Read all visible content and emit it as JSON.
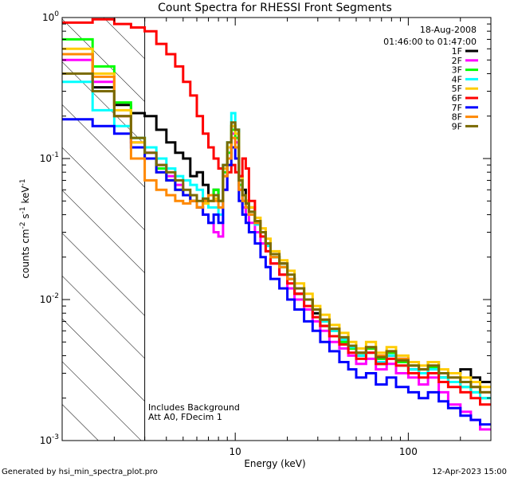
{
  "chart_data": {
    "type": "line",
    "title": "Count Spectra for RHESSI Front Segments",
    "xlabel": "Energy (keV)",
    "ylabel": "counts cm",
    "ylabel_sup1": "-2",
    "ylabel_mid": " s",
    "ylabel_sup2": "-1",
    "ylabel_end": " keV",
    "ylabel_sup3": "-1",
    "xscale": "log",
    "yscale": "log",
    "xlim": [
      1.0,
      300.0
    ],
    "ylim": [
      0.001,
      1.0
    ],
    "x_ticks": [
      {
        "value": 10,
        "label": "10"
      },
      {
        "value": 100,
        "label": "100"
      }
    ],
    "y_ticks": [
      {
        "value": 1.0,
        "base": "10",
        "exp": "0"
      },
      {
        "value": 0.1,
        "base": "10",
        "exp": "-1"
      },
      {
        "value": 0.01,
        "base": "10",
        "exp": "-2"
      },
      {
        "value": 0.001,
        "base": "10",
        "exp": "-3"
      }
    ],
    "shaded_region": {
      "x": [
        1.0,
        3.0
      ],
      "pattern": "diagonal-hatch"
    },
    "vertical_line_at": 3.0,
    "legend_position": "top-right",
    "date_line": "18-Aug-2008",
    "time_line": "01:46:00 to 01:47:00",
    "notes": [
      "Includes Background",
      "Att A0, FDecim 1"
    ],
    "footer_left": "Generated by hsi_min_spectra_plot.pro",
    "footer_right": "12-Apr-2023 15:00",
    "energy_edges": [
      1.0,
      1.5,
      2.0,
      2.5,
      3.0,
      3.5,
      4.0,
      4.5,
      5.0,
      5.5,
      6.0,
      6.5,
      7.0,
      7.5,
      8.0,
      8.5,
      9.0,
      9.5,
      10.0,
      10.5,
      11.0,
      11.5,
      12.0,
      13.0,
      14.0,
      15.0,
      16.0,
      18.0,
      20.0,
      22.0,
      25.0,
      28.0,
      31.0,
      35.0,
      40.0,
      45.0,
      50.0,
      57.0,
      65.0,
      75.0,
      85.0,
      100.0,
      115.0,
      130.0,
      150.0,
      170.0,
      200.0,
      230.0,
      260.0,
      300.0
    ],
    "series": [
      {
        "name": "1F",
        "color": "#000000",
        "values": [
          0.55,
          0.32,
          0.24,
          0.21,
          0.2,
          0.16,
          0.13,
          0.11,
          0.1,
          0.075,
          0.08,
          0.065,
          0.055,
          0.06,
          0.05,
          0.09,
          0.12,
          0.17,
          0.16,
          0.075,
          0.06,
          0.05,
          0.045,
          0.035,
          0.03,
          0.025,
          0.02,
          0.018,
          0.014,
          0.011,
          0.01,
          0.008,
          0.0065,
          0.0055,
          0.005,
          0.0045,
          0.004,
          0.0045,
          0.0035,
          0.004,
          0.0038,
          0.0032,
          0.003,
          0.0036,
          0.0028,
          0.003,
          0.0032,
          0.0028,
          0.0026
        ]
      },
      {
        "name": "2F",
        "color": "#ff00ff",
        "values": [
          0.5,
          0.35,
          0.2,
          0.13,
          0.11,
          0.09,
          0.075,
          0.065,
          0.055,
          0.05,
          0.045,
          0.04,
          0.035,
          0.03,
          0.028,
          0.06,
          0.1,
          0.15,
          0.13,
          0.06,
          0.045,
          0.04,
          0.035,
          0.03,
          0.025,
          0.022,
          0.018,
          0.015,
          0.012,
          0.01,
          0.0085,
          0.007,
          0.006,
          0.005,
          0.0045,
          0.004,
          0.0035,
          0.0038,
          0.0032,
          0.0035,
          0.003,
          0.0028,
          0.0025,
          0.0028,
          0.0022,
          0.0018,
          0.0016,
          0.0014,
          0.0012
        ]
      },
      {
        "name": "3F",
        "color": "#00ff00",
        "values": [
          0.7,
          0.45,
          0.25,
          0.14,
          0.1,
          0.085,
          0.07,
          0.06,
          0.055,
          0.05,
          0.045,
          0.05,
          0.055,
          0.06,
          0.05,
          0.08,
          0.11,
          0.16,
          0.14,
          0.065,
          0.05,
          0.045,
          0.04,
          0.035,
          0.03,
          0.025,
          0.02,
          0.017,
          0.014,
          0.012,
          0.01,
          0.0085,
          0.007,
          0.006,
          0.005,
          0.0045,
          0.004,
          0.0045,
          0.0038,
          0.0042,
          0.0036,
          0.0034,
          0.003,
          0.0033,
          0.0028,
          0.0026,
          0.0024,
          0.0022,
          0.002
        ]
      },
      {
        "name": "4F",
        "color": "#00ffff",
        "values": [
          0.35,
          0.22,
          0.17,
          0.14,
          0.12,
          0.1,
          0.085,
          0.075,
          0.07,
          0.065,
          0.06,
          0.05,
          0.045,
          0.045,
          0.04,
          0.09,
          0.13,
          0.21,
          0.16,
          0.07,
          0.055,
          0.048,
          0.04,
          0.034,
          0.028,
          0.024,
          0.02,
          0.017,
          0.014,
          0.012,
          0.01,
          0.0085,
          0.007,
          0.006,
          0.0052,
          0.0046,
          0.004,
          0.0042,
          0.0036,
          0.004,
          0.0034,
          0.0032,
          0.003,
          0.0032,
          0.0028,
          0.0026,
          0.0024,
          0.0022,
          0.002
        ]
      },
      {
        "name": "5F",
        "color": "#ffcc00",
        "values": [
          0.6,
          0.4,
          0.22,
          0.13,
          0.1,
          0.08,
          0.07,
          0.06,
          0.055,
          0.05,
          0.045,
          0.048,
          0.05,
          0.052,
          0.05,
          0.085,
          0.12,
          0.17,
          0.15,
          0.075,
          0.055,
          0.05,
          0.045,
          0.038,
          0.032,
          0.027,
          0.022,
          0.019,
          0.016,
          0.013,
          0.011,
          0.009,
          0.0078,
          0.0066,
          0.0058,
          0.005,
          0.0045,
          0.005,
          0.0042,
          0.0046,
          0.004,
          0.0036,
          0.0034,
          0.0036,
          0.0032,
          0.003,
          0.0028,
          0.0026,
          0.0024
        ]
      },
      {
        "name": "6F",
        "color": "#ff0000",
        "values": [
          0.92,
          0.97,
          0.9,
          0.85,
          0.8,
          0.65,
          0.55,
          0.45,
          0.35,
          0.28,
          0.2,
          0.15,
          0.12,
          0.1,
          0.085,
          0.075,
          0.08,
          0.09,
          0.08,
          0.075,
          0.1,
          0.085,
          0.05,
          0.035,
          0.028,
          0.022,
          0.018,
          0.015,
          0.013,
          0.011,
          0.009,
          0.0075,
          0.0065,
          0.0055,
          0.0048,
          0.0042,
          0.0038,
          0.0042,
          0.0035,
          0.0038,
          0.0034,
          0.003,
          0.0028,
          0.003,
          0.0026,
          0.0024,
          0.0022,
          0.002,
          0.0018
        ]
      },
      {
        "name": "7F",
        "color": "#0000ff",
        "values": [
          0.19,
          0.17,
          0.15,
          0.12,
          0.1,
          0.08,
          0.07,
          0.06,
          0.055,
          0.05,
          0.045,
          0.04,
          0.035,
          0.04,
          0.035,
          0.06,
          0.09,
          0.12,
          0.1,
          0.05,
          0.04,
          0.035,
          0.03,
          0.025,
          0.02,
          0.017,
          0.014,
          0.012,
          0.01,
          0.0085,
          0.007,
          0.006,
          0.005,
          0.0043,
          0.0036,
          0.0032,
          0.0028,
          0.003,
          0.0025,
          0.0028,
          0.0024,
          0.0022,
          0.002,
          0.0022,
          0.0019,
          0.0017,
          0.0015,
          0.0014,
          0.0013
        ]
      },
      {
        "name": "8F",
        "color": "#ff8800",
        "values": [
          0.55,
          0.38,
          0.2,
          0.1,
          0.07,
          0.06,
          0.055,
          0.05,
          0.048,
          0.05,
          0.045,
          0.05,
          0.055,
          0.05,
          0.045,
          0.075,
          0.1,
          0.14,
          0.12,
          0.06,
          0.05,
          0.045,
          0.04,
          0.035,
          0.03,
          0.025,
          0.02,
          0.017,
          0.014,
          0.012,
          0.01,
          0.0085,
          0.0072,
          0.0062,
          0.0054,
          0.0047,
          0.0042,
          0.0046,
          0.004,
          0.0043,
          0.0038,
          0.0034,
          0.0032,
          0.0034,
          0.003,
          0.0028,
          0.0026,
          0.0024,
          0.0022
        ]
      },
      {
        "name": "9F",
        "color": "#7a6a00",
        "values": [
          0.4,
          0.3,
          0.2,
          0.14,
          0.11,
          0.09,
          0.08,
          0.07,
          0.06,
          0.055,
          0.05,
          0.052,
          0.05,
          0.055,
          0.05,
          0.09,
          0.13,
          0.18,
          0.16,
          0.07,
          0.055,
          0.048,
          0.042,
          0.036,
          0.03,
          0.025,
          0.021,
          0.018,
          0.015,
          0.012,
          0.01,
          0.0085,
          0.0072,
          0.0062,
          0.0054,
          0.0047,
          0.0042,
          0.0046,
          0.0039,
          0.0043,
          0.0037,
          0.0034,
          0.0032,
          0.0034,
          0.003,
          0.0028,
          0.0026,
          0.0024,
          0.0022
        ]
      }
    ]
  }
}
